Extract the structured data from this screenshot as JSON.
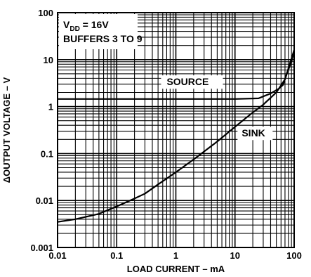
{
  "chart_data": {
    "type": "line",
    "x_scale": "log",
    "y_scale": "log",
    "xlim": [
      0.01,
      100
    ],
    "ylim": [
      0.001,
      100
    ],
    "xlabel": "LOAD CURRENT – mA",
    "ylabel": "ΔOUTPUT VOLTAGE – V",
    "x_ticks": [
      0.01,
      0.1,
      1,
      10,
      100
    ],
    "x_tick_labels": [
      "0.01",
      "0.1",
      "1",
      "10",
      "100"
    ],
    "y_ticks": [
      0.001,
      0.01,
      0.1,
      1,
      10,
      100
    ],
    "y_tick_labels": [
      "0.001",
      "0.01",
      "0.1",
      "1",
      "10",
      "100"
    ],
    "grid": true,
    "legend_box": {
      "vdd_prefix": "V",
      "vdd_sub": "DD",
      "vdd_suffix": " = 16V",
      "line2": "BUFFERS 3 TO 9",
      "placement": "top-left"
    },
    "series": [
      {
        "name": "SOURCE",
        "points": [
          [
            0.01,
            1.45
          ],
          [
            0.1,
            1.45
          ],
          [
            1,
            1.45
          ],
          [
            10,
            1.45
          ],
          [
            25,
            1.5
          ],
          [
            40,
            1.9
          ],
          [
            55,
            2.4
          ],
          [
            65,
            2.9
          ],
          [
            75,
            5
          ],
          [
            90,
            9
          ],
          [
            100,
            16
          ]
        ]
      },
      {
        "name": "SINK",
        "points": [
          [
            0.01,
            0.0035
          ],
          [
            0.02,
            0.004
          ],
          [
            0.05,
            0.0052
          ],
          [
            0.1,
            0.0075
          ],
          [
            0.2,
            0.011
          ],
          [
            0.3,
            0.014
          ],
          [
            0.5,
            0.022
          ],
          [
            1,
            0.04
          ],
          [
            2,
            0.075
          ],
          [
            5,
            0.18
          ],
          [
            10,
            0.37
          ],
          [
            20,
            0.75
          ],
          [
            30,
            1.1
          ],
          [
            50,
            2.0
          ],
          [
            70,
            3.8
          ],
          [
            100,
            16
          ]
        ]
      }
    ]
  }
}
